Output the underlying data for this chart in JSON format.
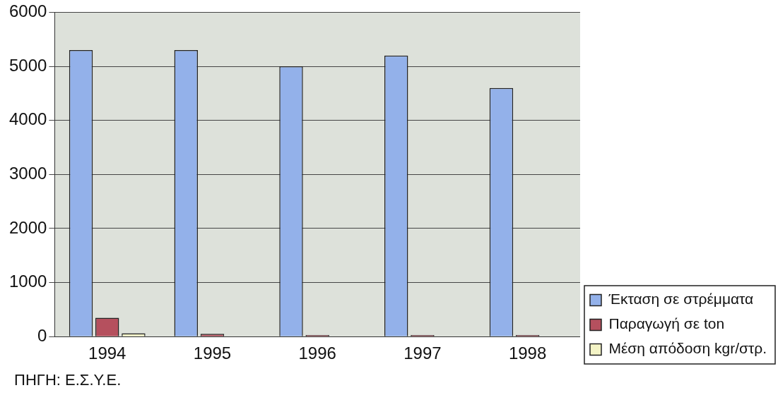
{
  "chart_data": {
    "type": "bar",
    "categories": [
      "1994",
      "1995",
      "1996",
      "1997",
      "1998"
    ],
    "series": [
      {
        "name": "Έκταση σε στρέμματα",
        "color": "#93b1ea",
        "values": [
          5300,
          5300,
          5000,
          5200,
          4600
        ]
      },
      {
        "name": "Παραγωγή σε ton",
        "color": "#b5505e",
        "values": [
          350,
          50,
          30,
          30,
          30
        ]
      },
      {
        "name": "Μέση απόδοση kgr/στρ.",
        "color": "#f4f4c6",
        "values": [
          60,
          null,
          null,
          null,
          null
        ]
      }
    ],
    "ylim": [
      0,
      6000
    ],
    "yticks": [
      0,
      1000,
      2000,
      3000,
      4000,
      5000,
      6000
    ],
    "grid": "y",
    "legend": "bottom right",
    "annotations": [
      "ΠΗΓΗ: Ε.Σ.Υ.Ε."
    ]
  }
}
